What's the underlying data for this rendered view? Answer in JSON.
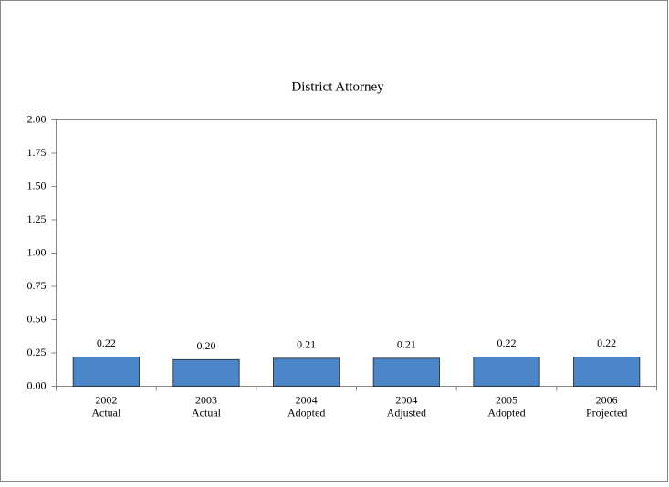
{
  "chart_data": {
    "type": "bar",
    "title": "District Attorney",
    "categories": [
      [
        "2002",
        "Actual"
      ],
      [
        "2003",
        "Actual"
      ],
      [
        "2004",
        "Adopted"
      ],
      [
        "2004",
        "Adjusted"
      ],
      [
        "2005",
        "Adopted"
      ],
      [
        "2006",
        "Projected"
      ]
    ],
    "values": [
      0.22,
      0.2,
      0.21,
      0.21,
      0.22,
      0.22
    ],
    "value_labels": [
      "0.22",
      "0.20",
      "0.21",
      "0.21",
      "0.22",
      "0.22"
    ],
    "color": "#4a86c8",
    "ylim": [
      0,
      2
    ],
    "yticks": [
      {
        "value": 0,
        "label": "0.00"
      },
      {
        "value": 0.25,
        "label": "0.25"
      },
      {
        "value": 0.5,
        "label": "0.50"
      },
      {
        "value": 0.75,
        "label": "0.75"
      },
      {
        "value": 1,
        "label": "1.00"
      },
      {
        "value": 1.25,
        "label": "1.25"
      },
      {
        "value": 1.5,
        "label": "1.50"
      },
      {
        "value": 1.75,
        "label": "1.75"
      },
      {
        "value": 2,
        "label": "2.00"
      }
    ],
    "grid": false
  }
}
